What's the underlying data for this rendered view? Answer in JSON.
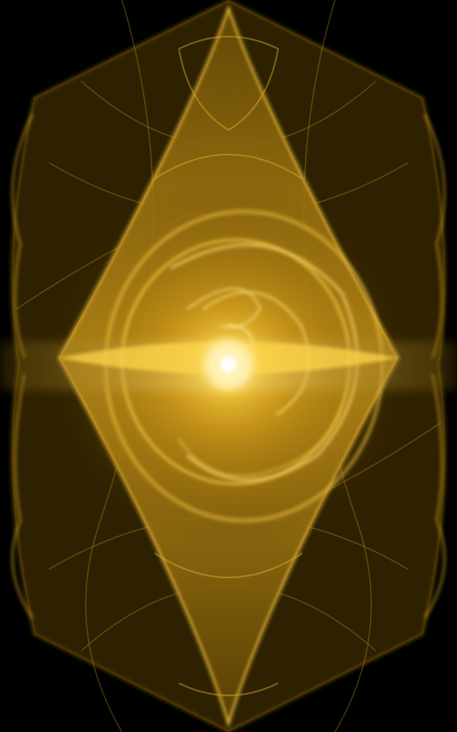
{
  "artwork": {
    "kind": "fractal-flame",
    "symmetry": "vertical-diamond",
    "palette": {
      "background": "#000000",
      "deep": "#3a2a00",
      "mid": "#b8860b",
      "main": "#e0a820",
      "bright": "#ffd84a",
      "core": "#fffbe0"
    }
  }
}
